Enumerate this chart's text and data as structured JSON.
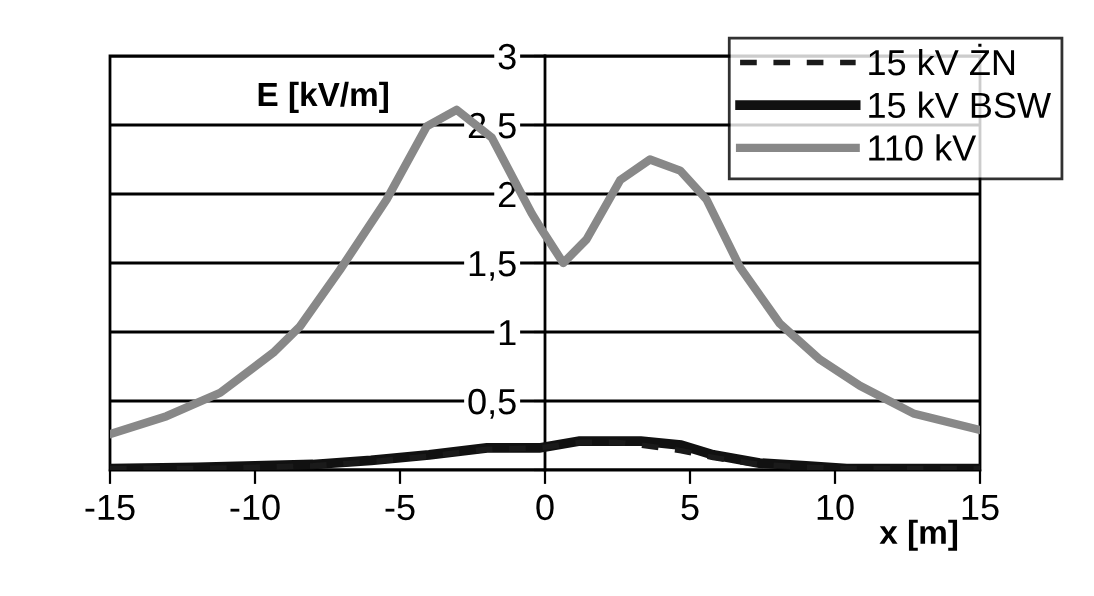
{
  "chart_data": {
    "type": "line",
    "xlabel": "x [m]",
    "ylabel": "E [kV/m]",
    "xlim": [
      -15,
      15
    ],
    "xticks": [
      -15,
      -10,
      -5,
      0,
      5,
      10,
      15
    ],
    "ylim": [
      0,
      3
    ],
    "yticks": [
      {
        "value": 0,
        "label": null
      },
      {
        "value": 0.5,
        "label": "0,5"
      },
      1,
      {
        "value": 1.5,
        "label": "1,5"
      },
      2,
      {
        "value": 2.5,
        "label": "2,5"
      },
      3
    ],
    "grid": "y",
    "legend": "top right",
    "series": [
      {
        "name": "15 kV ŻN",
        "color": "#1a1a1a",
        "line_style": "dashed",
        "x": [
          -15,
          -12,
          -10,
          -8,
          -6,
          -4,
          -2,
          -0.2,
          1.2,
          2.5,
          3.3,
          4.7,
          5.8,
          7.4,
          9,
          10.4,
          12,
          15
        ],
        "values": [
          0.01,
          0.01,
          0.02,
          0.03,
          0.06,
          0.1,
          0.15,
          0.16,
          0.2,
          0.2,
          0.18,
          0.14,
          0.09,
          0.04,
          0.02,
          0.01,
          0.01,
          0.01
        ]
      },
      {
        "name": "15 kV BSW",
        "color": "#111111",
        "line_style": "solid",
        "x": [
          -15,
          -12,
          -10,
          -8,
          -6,
          -4,
          -2,
          -0.2,
          1.2,
          2.5,
          3.3,
          4.7,
          5.8,
          7.4,
          9,
          10.4,
          12,
          15
        ],
        "values": [
          0.01,
          0.02,
          0.03,
          0.04,
          0.07,
          0.11,
          0.16,
          0.16,
          0.21,
          0.21,
          0.21,
          0.18,
          0.11,
          0.05,
          0.03,
          0.01,
          0.01,
          0.01
        ]
      },
      {
        "name": "110 kV",
        "color": "#888888",
        "line_style": "solid",
        "x": [
          -15,
          -13.05,
          -11.2,
          -9.37,
          -8.45,
          -7.07,
          -5.46,
          -4.08,
          -3.05,
          -1.84,
          -0.46,
          -0.17,
          0.63,
          1.43,
          2.59,
          3.62,
          4.66,
          5.57,
          6.72,
          8.1,
          9.48,
          10.86,
          12.7,
          15
        ],
        "values": [
          0.26,
          0.39,
          0.56,
          0.85,
          1.04,
          1.45,
          1.96,
          2.49,
          2.61,
          2.41,
          1.86,
          1.76,
          1.5,
          1.67,
          2.1,
          2.25,
          2.17,
          1.96,
          1.47,
          1.06,
          0.8,
          0.61,
          0.41,
          0.29
        ]
      }
    ]
  }
}
